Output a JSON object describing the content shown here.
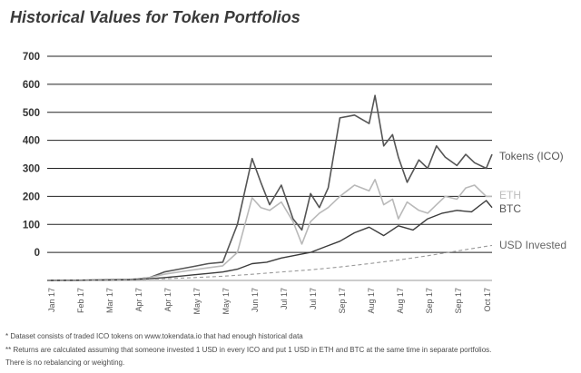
{
  "chart_data": {
    "type": "line",
    "title": "Historical Values for Token Portfolios",
    "xlabel": "",
    "ylabel": "",
    "ylim": [
      -100,
      700
    ],
    "yticks": [
      700,
      600,
      500,
      400,
      300,
      200,
      100,
      0
    ],
    "x_tick_labels": [
      "Jan 17",
      "Feb 17",
      "Mar 17",
      "Apr 17",
      "Apr 17",
      "May 17",
      "May 17",
      "Jun 17",
      "Jul 17",
      "Jul 17",
      "Sep 17",
      "Aug 17",
      "Aug 17",
      "Sep 17",
      "Sep 17",
      "Oct 17"
    ],
    "x_range": [
      0,
      15.2
    ],
    "grid": "horizontal",
    "legend": "right, inline labels",
    "colors": {
      "Tokens (ICO)": "#555555",
      "ETH": "#b9b9b9",
      "BTC": "#3b3b3b",
      "USD Invested": "#9a9a9a",
      "grid": "#222222"
    },
    "series": [
      {
        "name": "Tokens (ICO)",
        "style": "solid",
        "x": [
          0,
          1,
          2,
          2.8,
          3,
          3.5,
          4,
          4.5,
          5,
          5.5,
          6,
          6.5,
          7,
          7.3,
          7.6,
          8,
          8.4,
          8.7,
          9,
          9.3,
          9.6,
          10,
          10.5,
          11,
          11.2,
          11.5,
          11.8,
          12,
          12.3,
          12.7,
          13,
          13.3,
          13.6,
          14,
          14.3,
          14.6,
          15,
          15.2
        ],
        "y": [
          -100,
          -100,
          -98,
          -97,
          -95,
          -90,
          -70,
          -60,
          -50,
          -40,
          -35,
          100,
          335,
          250,
          170,
          240,
          120,
          80,
          210,
          160,
          230,
          480,
          490,
          460,
          560,
          380,
          420,
          340,
          250,
          330,
          300,
          380,
          340,
          310,
          350,
          320,
          300,
          350
        ]
      },
      {
        "name": "ETH",
        "style": "solid",
        "x": [
          0,
          1,
          2,
          2.8,
          3,
          3.5,
          4,
          4.5,
          5,
          5.5,
          6,
          6.5,
          7,
          7.3,
          7.6,
          8,
          8.4,
          8.7,
          9,
          9.3,
          9.6,
          10,
          10.5,
          11,
          11.2,
          11.5,
          11.8,
          12,
          12.3,
          12.7,
          13,
          13.3,
          13.6,
          14,
          14.3,
          14.6,
          15,
          15.2
        ],
        "y": [
          -100,
          -100,
          -97,
          -96,
          -95,
          -90,
          -78,
          -70,
          -62,
          -55,
          -48,
          0,
          195,
          160,
          150,
          180,
          110,
          30,
          110,
          140,
          160,
          200,
          240,
          220,
          260,
          170,
          190,
          120,
          180,
          150,
          140,
          170,
          200,
          190,
          230,
          240,
          200,
          200
        ]
      },
      {
        "name": "BTC",
        "style": "solid",
        "x": [
          0,
          1,
          2,
          2.8,
          3,
          3.5,
          4,
          4.5,
          5,
          5.5,
          6,
          6.5,
          7,
          7.5,
          8,
          8.5,
          9,
          9.5,
          10,
          10.5,
          11,
          11.5,
          12,
          12.5,
          13,
          13.5,
          14,
          14.5,
          15,
          15.2
        ],
        "y": [
          -100,
          -99,
          -98,
          -97,
          -96,
          -94,
          -90,
          -85,
          -80,
          -75,
          -70,
          -60,
          -40,
          -35,
          -20,
          -10,
          0,
          20,
          40,
          70,
          90,
          60,
          95,
          80,
          120,
          140,
          150,
          145,
          185,
          160
        ]
      },
      {
        "name": "USD Invested",
        "style": "dashed",
        "x": [
          0,
          2,
          3,
          4,
          5,
          6,
          7,
          8,
          9,
          10,
          11,
          12,
          13,
          14,
          15.2
        ],
        "y": [
          -100,
          -99,
          -97,
          -94,
          -90,
          -85,
          -78,
          -70,
          -62,
          -52,
          -40,
          -27,
          -12,
          5,
          25
        ]
      }
    ],
    "inline_labels": [
      {
        "series": "Tokens (ICO)",
        "text": "Tokens (ICO)"
      },
      {
        "series": "ETH",
        "text": "ETH"
      },
      {
        "series": "BTC",
        "text": "BTC"
      },
      {
        "series": "USD Invested",
        "text": "USD Invested"
      }
    ]
  },
  "footnotes": {
    "note1": "* Dataset consists of traded ICO tokens on www.tokendata.io that had enough historical data",
    "note2": "** Returns are calculated assuming that someone invested 1 USD in every ICO and put 1 USD in ETH and BTC at the same time in separate portfolios.",
    "note3": "There is no rebalancing or weighting."
  }
}
